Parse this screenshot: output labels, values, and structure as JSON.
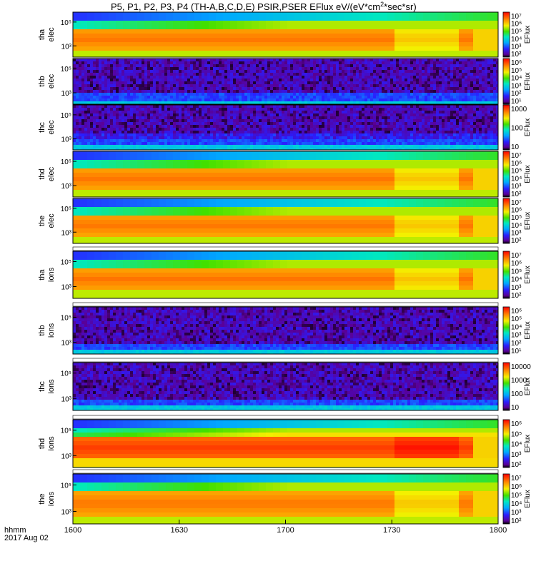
{
  "chart_data": {
    "type": "heatmap",
    "title_parts": {
      "main": "P5, P1, P2, P3, P4 (TH-A,B,C,D,E) PSIR,PSER EFlux eV/(eV*cm",
      "sup": "2",
      "tail": "*sec*sr)"
    },
    "x_axis": {
      "label": "hhmm",
      "date": "2017 Aug 02",
      "ticks": [
        "1600",
        "1630",
        "1700",
        "1730",
        "1800"
      ],
      "range": [
        "16:00",
        "18:00"
      ]
    },
    "colorbar_label": "EFlux",
    "panels": [
      {
        "probe": "tha",
        "species": "elec",
        "yticks": [
          "10⁵",
          "10³"
        ],
        "colorbar_ticks": [
          "10⁷",
          "10⁶",
          "10⁵",
          "10⁴",
          "10³",
          "10²"
        ],
        "pattern": "strong"
      },
      {
        "probe": "thb",
        "species": "elec",
        "yticks": [
          "10⁵",
          "10³"
        ],
        "colorbar_ticks": [
          "10⁶",
          "10⁵",
          "10⁴",
          "10³",
          "10²",
          "10¹"
        ],
        "pattern": "noise"
      },
      {
        "probe": "thc",
        "species": "elec",
        "yticks": [
          "10⁵",
          "10³"
        ],
        "colorbar_ticks": [
          "1000",
          "100",
          "10"
        ],
        "pattern": "noise2"
      },
      {
        "probe": "thd",
        "species": "elec",
        "yticks": [
          "10⁵",
          "10³"
        ],
        "colorbar_ticks": [
          "10⁷",
          "10⁶",
          "10⁵",
          "10⁴",
          "10³",
          "10²"
        ],
        "pattern": "strong"
      },
      {
        "probe": "the",
        "species": "elec",
        "yticks": [
          "10⁵",
          "10³"
        ],
        "colorbar_ticks": [
          "10⁷",
          "10⁶",
          "10⁵",
          "10⁴",
          "10³",
          "10²"
        ],
        "pattern": "strong"
      },
      {
        "probe": "tha",
        "species": "ions",
        "yticks": [
          "10⁵",
          "10³"
        ],
        "colorbar_ticks": [
          "10⁷",
          "10⁶",
          "10⁵",
          "10⁴",
          "10³",
          "10²"
        ],
        "pattern": "strong"
      },
      {
        "probe": "thb",
        "species": "ions",
        "yticks": [
          "10⁵",
          "10³"
        ],
        "colorbar_ticks": [
          "10⁶",
          "10⁵",
          "10⁴",
          "10³",
          "10²",
          "10¹"
        ],
        "pattern": "noise"
      },
      {
        "probe": "thc",
        "species": "ions",
        "yticks": [
          "10⁵",
          "10³"
        ],
        "colorbar_ticks": [
          "10000",
          "1000",
          "100",
          "10"
        ],
        "pattern": "noise"
      },
      {
        "probe": "thd",
        "species": "ions",
        "yticks": [
          "10⁵",
          "10³"
        ],
        "colorbar_ticks": [
          "10⁶",
          "10⁵",
          "10⁴",
          "10³",
          "10²"
        ],
        "pattern": "hot"
      },
      {
        "probe": "the",
        "species": "ions",
        "yticks": [
          "10⁵",
          "10³"
        ],
        "colorbar_ticks": [
          "10⁷",
          "10⁶",
          "10⁵",
          "10⁴",
          "10³",
          "10²"
        ],
        "pattern": "strong"
      }
    ]
  }
}
